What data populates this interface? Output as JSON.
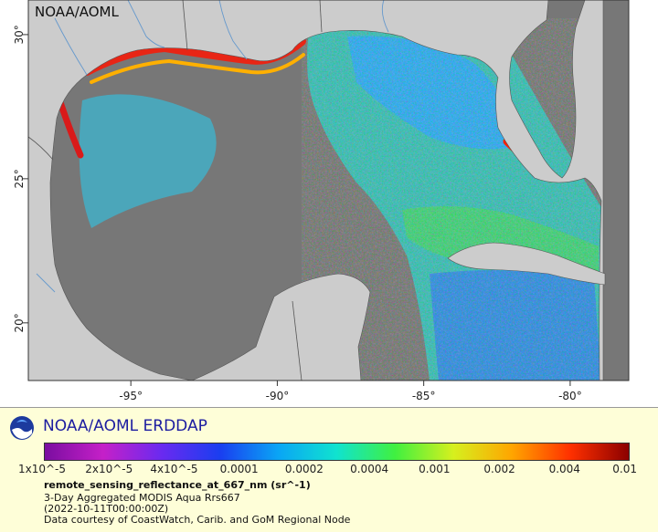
{
  "map": {
    "watermark": "NOAA/AOML",
    "x_ticks": [
      {
        "value": -95,
        "label": "-95°"
      },
      {
        "value": -90,
        "label": "-90°"
      },
      {
        "value": -85,
        "label": "-85°"
      },
      {
        "value": -80,
        "label": "-80°"
      }
    ],
    "y_ticks": [
      {
        "value": 30,
        "label": "30°"
      },
      {
        "value": 25,
        "label": "25°"
      },
      {
        "value": 20,
        "label": "20°"
      }
    ],
    "lon_range": [
      -98.5,
      -78
    ],
    "lat_range": [
      18,
      31.2
    ],
    "colors": {
      "land": "#cccccc",
      "no_data": "#777777",
      "rivers": "#6699cc",
      "borders": "#555555"
    }
  },
  "legend": {
    "title": "NOAA/AOML ERDDAP",
    "colorbar_ticks": [
      "1x10^-5",
      "2x10^-5",
      "4x10^-5",
      "0.0001",
      "0.0002",
      "0.0004",
      "0.001",
      "0.002",
      "0.004",
      "0.01"
    ],
    "colorbar_colors": [
      "#7a0da0",
      "#c520c8",
      "#6a2af0",
      "#1a3ef0",
      "#0aa5f5",
      "#10e3cf",
      "#40f040",
      "#d6f01e",
      "#ffa500",
      "#ff3000",
      "#8b0000"
    ],
    "variable": "remote_sensing_reflectance_at_667_nm (sr^-1)",
    "info_lines": [
      "3-Day Aggregated MODIS Aqua Rrs667",
      "(2022-10-11T00:00:00Z)",
      "Data courtesy of CoastWatch, Carib. and GoM Regional Node"
    ],
    "logo_icon": "noaa-logo-icon"
  }
}
